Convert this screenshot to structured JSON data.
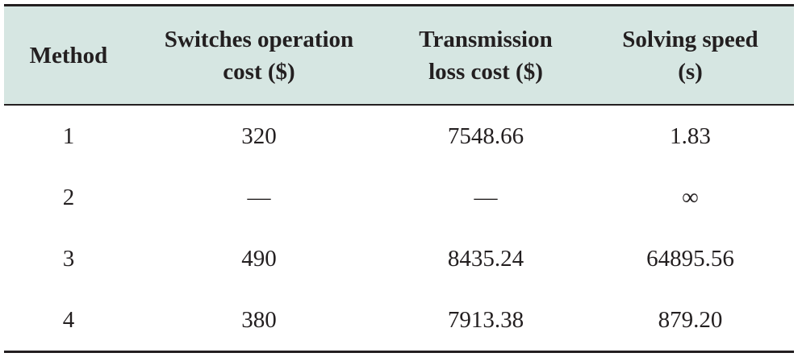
{
  "table": {
    "headers": [
      {
        "line1": "Method",
        "line2": ""
      },
      {
        "line1": "Switches operation",
        "line2": "cost ($)"
      },
      {
        "line1": "Transmission",
        "line2": "loss cost ($)"
      },
      {
        "line1": "Solving speed",
        "line2": "(s)"
      }
    ],
    "rows": [
      [
        "1",
        "320",
        "7548.66",
        "1.83"
      ],
      [
        "2",
        "—",
        "—",
        "∞"
      ],
      [
        "3",
        "490",
        "8435.24",
        "64895.56"
      ],
      [
        "4",
        "380",
        "7913.38",
        "879.20"
      ]
    ],
    "colors": {
      "header_background": "#d6e6e2",
      "rule": "#231f20",
      "text": "#231f20"
    }
  }
}
